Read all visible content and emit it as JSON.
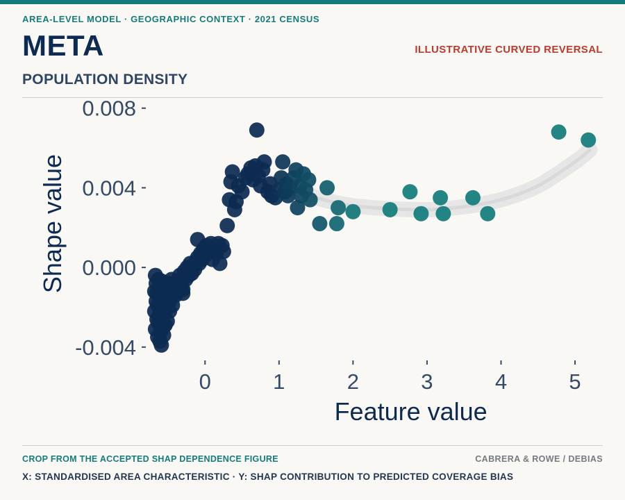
{
  "header": {
    "kicker": "AREA-LEVEL MODEL · GEOGRAPHIC CONTEXT · 2021 CENSUS",
    "title": "META",
    "subtitle": "POPULATION DENSITY",
    "tag": "ILLUSTRATIVE CURVED REVERSAL"
  },
  "footer": {
    "source": "CROP FROM THE ACCEPTED SHAP DEPENDENCE FIGURE",
    "credit": "CABRERA & ROWE / DEBIAS",
    "caption": "X: STANDARDISED AREA CHARACTERISTIC · Y: SHAP CONTRIBUTION TO PREDICTED COVERAGE BIAS"
  },
  "colors": {
    "accent": "#137c7c",
    "title": "#0d2b52",
    "tag": "#b83b2e",
    "point_low": "#0d2b52",
    "point_high": "#137c7c",
    "trend_band": "#e6e6e6"
  },
  "chart_data": {
    "type": "scatter",
    "xlabel": "Feature value",
    "ylabel": "Shape value",
    "xlim": [
      -0.8,
      5.3
    ],
    "ylim": [
      -0.0046,
      0.0082
    ],
    "x_ticks": [
      0,
      1,
      2,
      3,
      4,
      5
    ],
    "x_tick_labels": [
      "0",
      "1",
      "2",
      "3",
      "4",
      "5"
    ],
    "y_ticks": [
      -0.004,
      0.0,
      0.004,
      0.008
    ],
    "y_tick_labels": [
      "-0.004",
      "0.000",
      "0.004",
      "0.008"
    ],
    "grid": false,
    "trend": {
      "x": [
        0.85,
        1.2,
        1.6,
        2.0,
        2.5,
        3.0,
        3.5,
        4.0,
        4.5,
        5.0,
        5.2
      ],
      "y": [
        0.0043,
        0.0039,
        0.0034,
        0.0031,
        0.00295,
        0.0029,
        0.00305,
        0.0034,
        0.0041,
        0.0053,
        0.0059
      ]
    },
    "points": [
      [
        -0.68,
        -0.0012
      ],
      [
        -0.68,
        -0.0022
      ],
      [
        -0.67,
        -0.0004
      ],
      [
        -0.67,
        -0.0031
      ],
      [
        -0.66,
        -0.0017
      ],
      [
        -0.66,
        -0.0008
      ],
      [
        -0.65,
        -0.0026
      ],
      [
        -0.65,
        -0.0013
      ],
      [
        -0.64,
        -0.0035
      ],
      [
        -0.64,
        -0.0019
      ],
      [
        -0.63,
        -0.0006
      ],
      [
        -0.63,
        -0.0028
      ],
      [
        -0.62,
        -0.0015
      ],
      [
        -0.62,
        -0.0024
      ],
      [
        -0.61,
        -0.0037
      ],
      [
        -0.61,
        -0.001
      ],
      [
        -0.6,
        -0.0021
      ],
      [
        -0.6,
        -0.0032
      ],
      [
        -0.59,
        -0.0014
      ],
      [
        -0.59,
        -0.0039
      ],
      [
        -0.58,
        -0.0025
      ],
      [
        -0.58,
        -0.0007
      ],
      [
        -0.57,
        -0.0018
      ],
      [
        -0.57,
        -0.003
      ],
      [
        -0.56,
        -0.0011
      ],
      [
        -0.56,
        -0.0034
      ],
      [
        -0.55,
        -0.0023
      ],
      [
        -0.55,
        -0.0016
      ],
      [
        -0.54,
        -0.0029
      ],
      [
        -0.54,
        -0.0009
      ],
      [
        -0.53,
        -0.002
      ],
      [
        -0.52,
        -0.0013
      ],
      [
        -0.51,
        -0.0027
      ],
      [
        -0.5,
        -0.0008
      ],
      [
        -0.49,
        -0.0018
      ],
      [
        -0.48,
        -0.0022
      ],
      [
        -0.47,
        -0.0011
      ],
      [
        -0.46,
        -0.0015
      ],
      [
        -0.45,
        -0.0006
      ],
      [
        -0.44,
        -0.0019
      ],
      [
        -0.42,
        -0.001
      ],
      [
        -0.4,
        -0.0014
      ],
      [
        -0.38,
        -0.0007
      ],
      [
        -0.36,
        -0.0012
      ],
      [
        -0.34,
        -0.0004
      ],
      [
        -0.32,
        -0.0009
      ],
      [
        -0.3,
        -0.0013
      ],
      [
        -0.28,
        -0.0002
      ],
      [
        -0.26,
        -0.0006
      ],
      [
        -0.24,
        0.0
      ],
      [
        -0.22,
        -0.0004
      ],
      [
        -0.2,
        0.0002
      ],
      [
        -0.18,
        -0.0003
      ],
      [
        -0.16,
        0.0001
      ],
      [
        -0.14,
        -0.0001
      ],
      [
        -0.12,
        0.0003
      ],
      [
        -0.1,
        0.0005
      ],
      [
        -0.08,
        0.0002
      ],
      [
        -0.06,
        0.0007
      ],
      [
        -0.04,
        0.0004
      ],
      [
        -0.02,
        0.0009
      ],
      [
        0.0,
        0.0006
      ],
      [
        0.02,
        0.0011
      ],
      [
        0.05,
        0.0008
      ],
      [
        0.08,
        0.0012
      ],
      [
        0.1,
        0.0004
      ],
      [
        0.12,
        0.0009
      ],
      [
        0.15,
        0.0007
      ],
      [
        0.18,
        0.0012
      ],
      [
        0.2,
        0.0002
      ],
      [
        0.23,
        0.0011
      ],
      [
        0.25,
        0.0008
      ],
      [
        -0.1,
        0.0014
      ],
      [
        -0.3,
        -0.0011
      ],
      [
        0.3,
        0.0021
      ],
      [
        0.33,
        0.0034
      ],
      [
        0.35,
        0.0043
      ],
      [
        0.37,
        0.0048
      ],
      [
        0.4,
        0.0029
      ],
      [
        0.42,
        0.0033
      ],
      [
        0.45,
        0.0041
      ],
      [
        0.5,
        0.0038
      ],
      [
        0.55,
        0.0045
      ],
      [
        0.58,
        0.0047
      ],
      [
        0.62,
        0.005
      ],
      [
        0.65,
        0.0044
      ],
      [
        0.68,
        0.0051
      ],
      [
        0.7,
        0.0069
      ],
      [
        0.72,
        0.0046
      ],
      [
        0.75,
        0.0041
      ],
      [
        0.78,
        0.0049
      ],
      [
        0.8,
        0.0053
      ],
      [
        0.85,
        0.0038
      ],
      [
        0.88,
        0.0042
      ],
      [
        0.9,
        0.0036
      ],
      [
        0.95,
        0.0035
      ],
      [
        1.0,
        0.0039
      ],
      [
        1.03,
        0.0045
      ],
      [
        1.05,
        0.0053
      ],
      [
        1.08,
        0.0038
      ],
      [
        1.1,
        0.0042
      ],
      [
        1.12,
        0.0036
      ],
      [
        1.15,
        0.004
      ],
      [
        1.2,
        0.0045
      ],
      [
        1.23,
        0.0049
      ],
      [
        1.25,
        0.003
      ],
      [
        1.28,
        0.0041
      ],
      [
        1.3,
        0.0036
      ],
      [
        1.33,
        0.0047
      ],
      [
        1.36,
        0.0039
      ],
      [
        1.4,
        0.0044
      ],
      [
        1.42,
        0.0034
      ],
      [
        1.55,
        0.0022
      ],
      [
        1.65,
        0.004
      ],
      [
        1.78,
        0.0022
      ],
      [
        1.8,
        0.003
      ],
      [
        2.0,
        0.0028
      ],
      [
        2.5,
        0.0029
      ],
      [
        2.77,
        0.0038
      ],
      [
        2.92,
        0.0027
      ],
      [
        3.18,
        0.0035
      ],
      [
        3.22,
        0.0027
      ],
      [
        3.62,
        0.0035
      ],
      [
        3.82,
        0.0027
      ],
      [
        4.78,
        0.0068
      ],
      [
        5.18,
        0.0064
      ]
    ]
  }
}
